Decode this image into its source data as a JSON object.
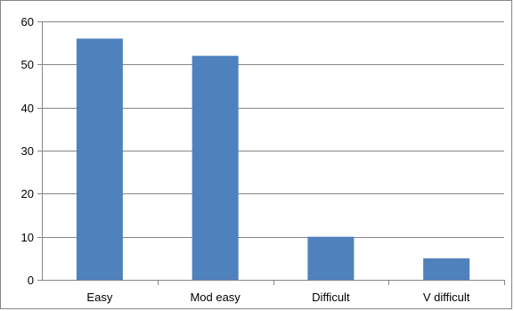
{
  "chart_data": {
    "type": "bar",
    "categories": [
      "Easy",
      "Mod easy",
      "Difficult",
      "V difficult"
    ],
    "values": [
      56,
      52,
      10,
      5
    ],
    "title": "",
    "xlabel": "",
    "ylabel": "",
    "ylim": [
      0,
      60
    ],
    "yticks": [
      0,
      10,
      20,
      30,
      40,
      50,
      60
    ],
    "grid": true,
    "legend": "none",
    "bar_color": "#4F81BD",
    "grid_color": "#868686"
  }
}
